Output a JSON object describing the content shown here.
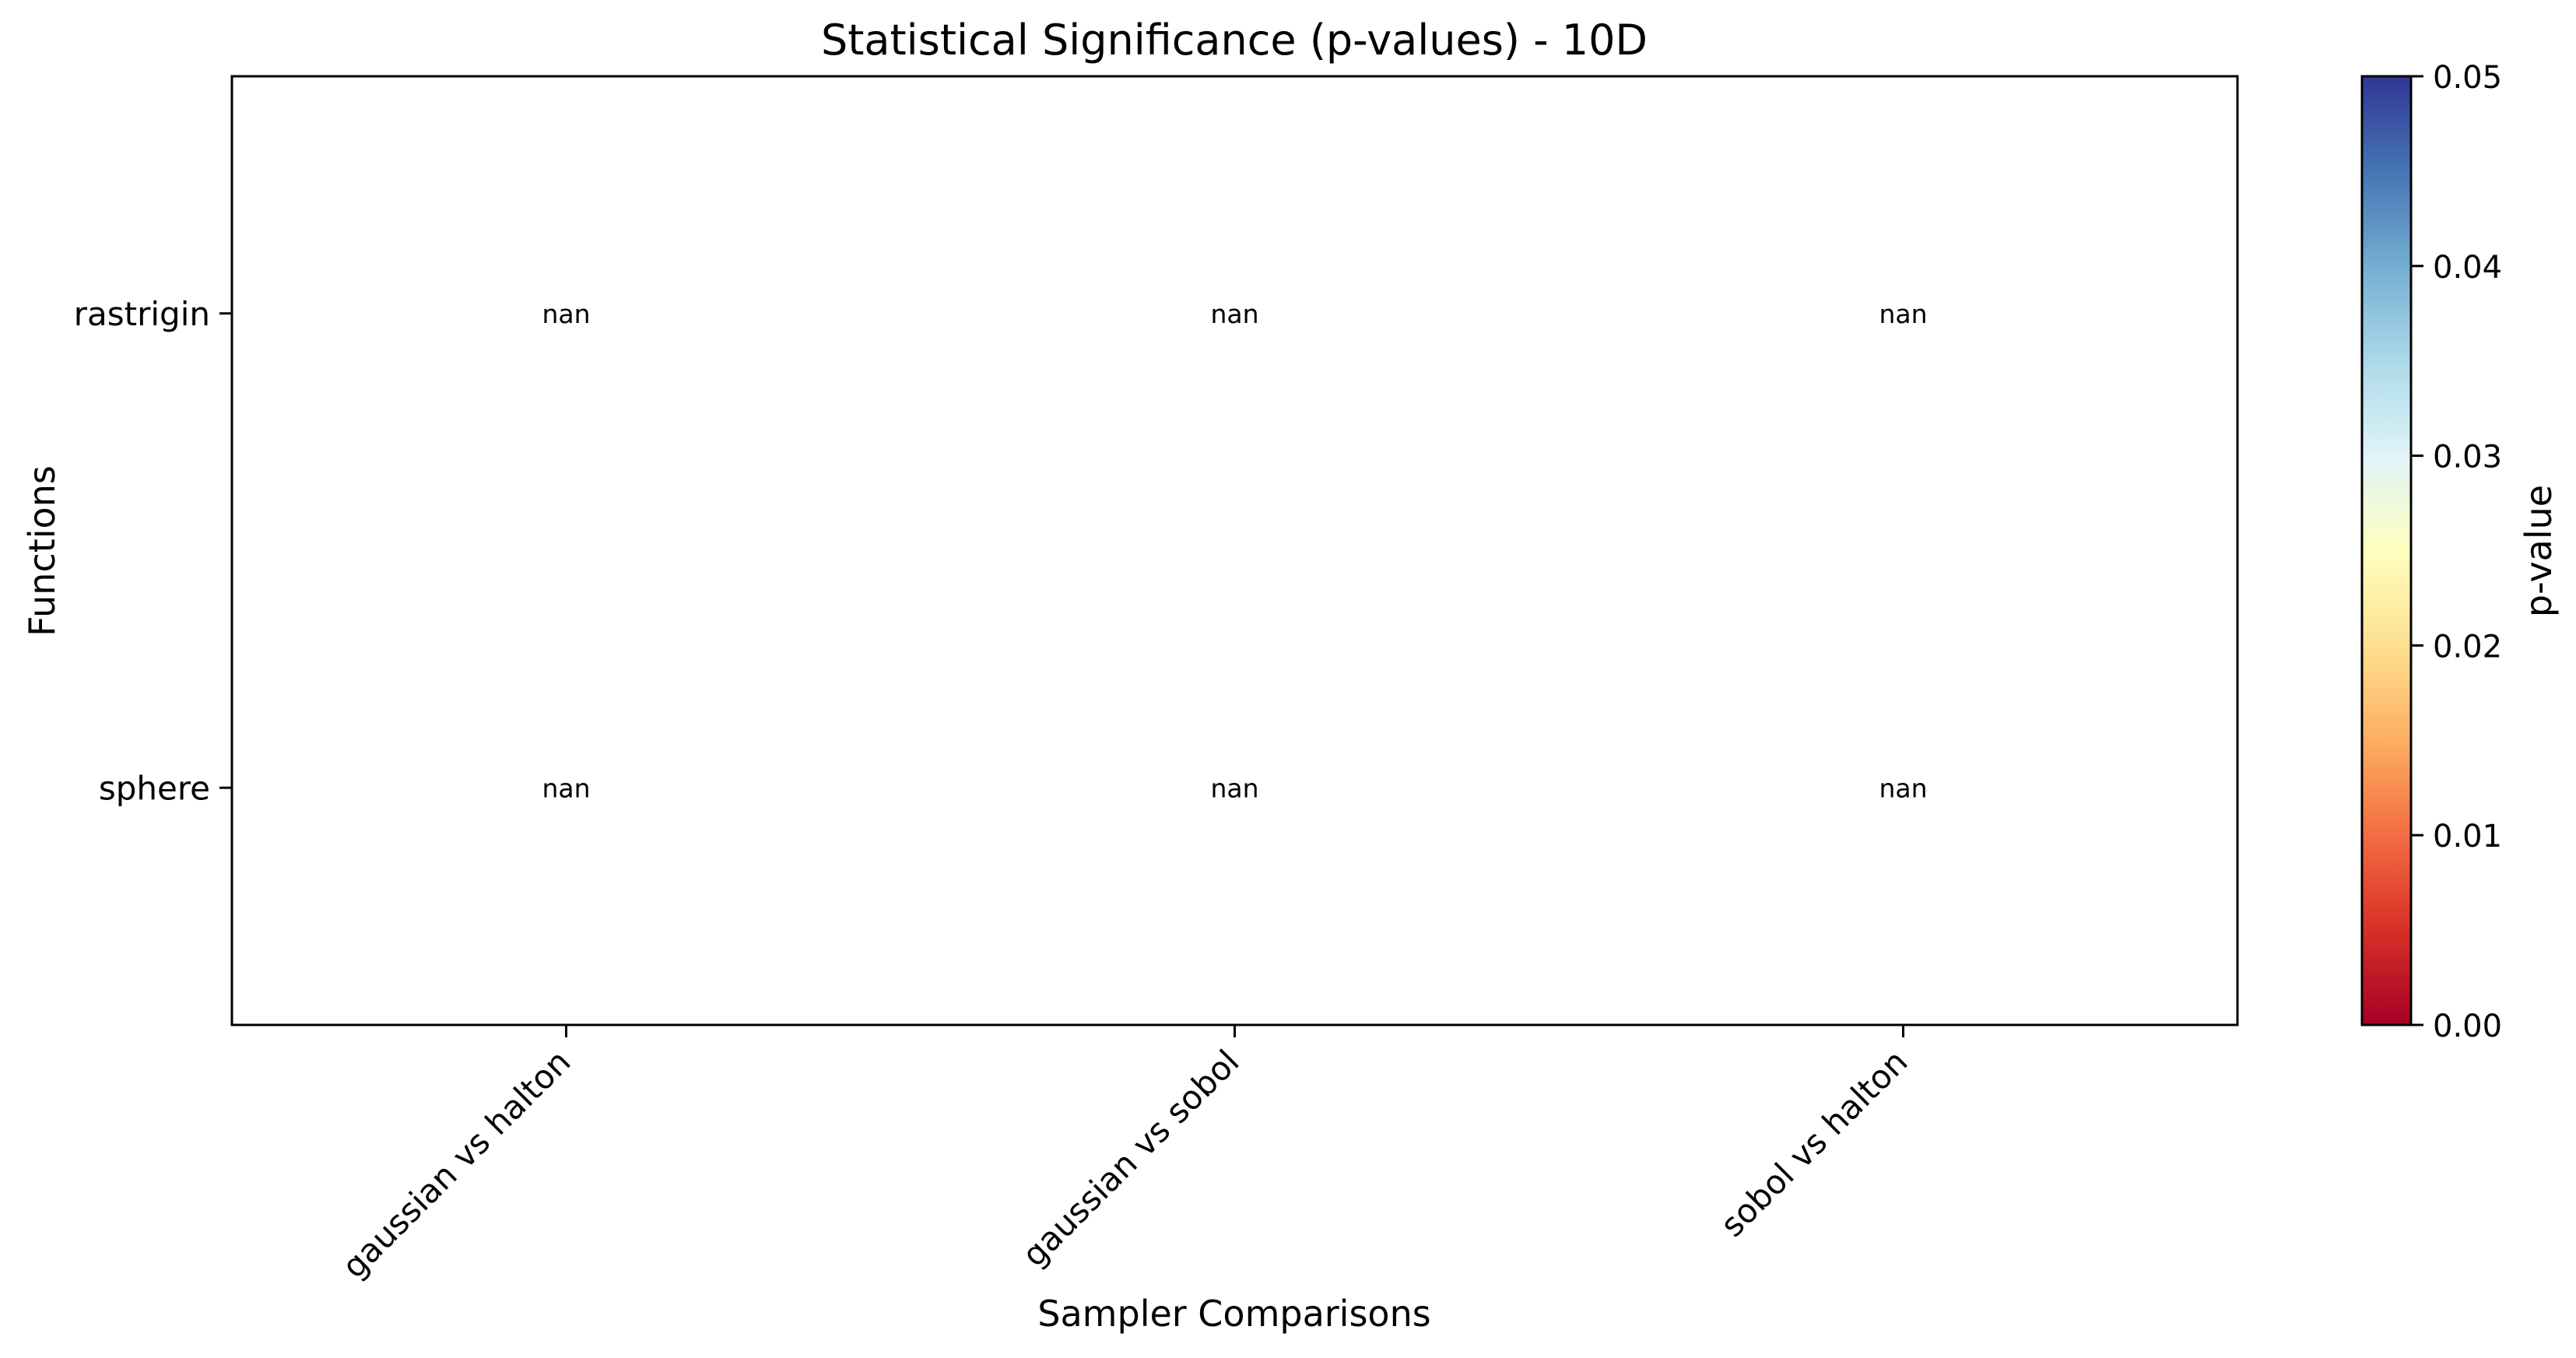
{
  "chart_data": {
    "type": "heatmap",
    "title": "Statistical Significance (p-values) - 10D",
    "xlabel": "Sampler Comparisons",
    "ylabel": "Functions",
    "x_categories": [
      "gaussian vs halton",
      "gaussian vs sobol",
      "sobol vs halton"
    ],
    "y_categories": [
      "rastrigin",
      "sphere"
    ],
    "values": [
      [
        null,
        null,
        null
      ],
      [
        null,
        null,
        null
      ]
    ],
    "cell_labels": [
      [
        "nan",
        "nan",
        "nan"
      ],
      [
        "nan",
        "nan",
        "nan"
      ]
    ],
    "colorbar": {
      "label": "p-value",
      "range": [
        0.0,
        0.05
      ],
      "ticks": [
        "0.00",
        "0.01",
        "0.02",
        "0.03",
        "0.04",
        "0.05"
      ],
      "colormap": "RdYlBu",
      "colors": [
        "#a50026",
        "#d73027",
        "#f46d43",
        "#fdae61",
        "#fee090",
        "#ffffbf",
        "#e0f3f8",
        "#abd9e9",
        "#74add1",
        "#4575b4",
        "#313695"
      ]
    },
    "grid": false
  }
}
